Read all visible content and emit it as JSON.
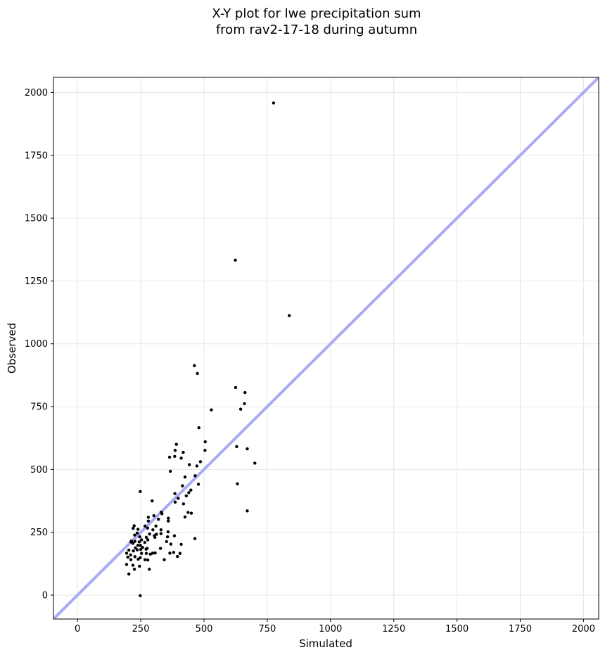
{
  "chart_data": {
    "type": "scatter",
    "title": "X-Y plot for lwe precipitation sum\nfrom rav2-17-18 during autumn",
    "xlabel": "Simulated",
    "ylabel": "Observed",
    "xlim": [
      -95,
      2060
    ],
    "ylim": [
      -95,
      2060
    ],
    "xticks": [
      0,
      250,
      500,
      750,
      1000,
      1250,
      1500,
      1750,
      2000
    ],
    "yticks": [
      0,
      250,
      500,
      750,
      1000,
      1250,
      1500,
      1750,
      2000
    ],
    "grid": true,
    "reference_line": {
      "type": "identity",
      "color": "#aaaaf5"
    },
    "point_color": "#000000",
    "points": [
      [
        775,
        1958
      ],
      [
        624,
        1333
      ],
      [
        837,
        1112
      ],
      [
        462,
        913
      ],
      [
        474,
        882
      ],
      [
        625,
        826
      ],
      [
        662,
        806
      ],
      [
        529,
        737
      ],
      [
        660,
        762
      ],
      [
        645,
        740
      ],
      [
        480,
        666
      ],
      [
        505,
        610
      ],
      [
        391,
        600
      ],
      [
        629,
        591
      ],
      [
        504,
        576
      ],
      [
        671,
        582
      ],
      [
        386,
        576
      ],
      [
        418,
        568
      ],
      [
        384,
        552
      ],
      [
        410,
        545
      ],
      [
        364,
        549
      ],
      [
        486,
        531
      ],
      [
        701,
        525
      ],
      [
        442,
        519
      ],
      [
        472,
        514
      ],
      [
        367,
        493
      ],
      [
        465,
        475
      ],
      [
        425,
        470
      ],
      [
        478,
        441
      ],
      [
        632,
        443
      ],
      [
        415,
        435
      ],
      [
        448,
        418
      ],
      [
        440,
        408
      ],
      [
        385,
        404
      ],
      [
        430,
        395
      ],
      [
        398,
        385
      ],
      [
        248,
        412
      ],
      [
        295,
        375
      ],
      [
        386,
        370
      ],
      [
        419,
        363
      ],
      [
        671,
        335
      ],
      [
        437,
        329
      ],
      [
        450,
        326
      ],
      [
        331,
        330
      ],
      [
        334,
        324
      ],
      [
        425,
        311
      ],
      [
        302,
        316
      ],
      [
        280,
        310
      ],
      [
        320,
        302
      ],
      [
        359,
        306
      ],
      [
        359,
        295
      ],
      [
        280,
        295
      ],
      [
        330,
        260
      ],
      [
        310,
        275
      ],
      [
        298,
        260
      ],
      [
        224,
        276
      ],
      [
        220,
        266
      ],
      [
        239,
        262
      ],
      [
        267,
        275
      ],
      [
        277,
        267
      ],
      [
        358,
        252
      ],
      [
        312,
        242
      ],
      [
        330,
        245
      ],
      [
        383,
        236
      ],
      [
        285,
        243
      ],
      [
        304,
        237
      ],
      [
        246,
        232
      ],
      [
        213,
        215
      ],
      [
        227,
        214
      ],
      [
        253,
        220
      ],
      [
        272,
        230
      ],
      [
        356,
        232
      ],
      [
        266,
        210
      ],
      [
        249,
        198
      ],
      [
        306,
        230
      ],
      [
        352,
        213
      ],
      [
        369,
        203
      ],
      [
        410,
        202
      ],
      [
        464,
        225
      ],
      [
        239,
        198
      ],
      [
        257,
        190
      ],
      [
        219,
        206
      ],
      [
        229,
        188
      ],
      [
        275,
        186
      ],
      [
        250,
        182
      ],
      [
        236,
        180
      ],
      [
        328,
        186
      ],
      [
        271,
        183
      ],
      [
        203,
        179
      ],
      [
        221,
        176
      ],
      [
        194,
        167
      ],
      [
        253,
        166
      ],
      [
        272,
        166
      ],
      [
        288,
        163
      ],
      [
        365,
        167
      ],
      [
        210,
        160
      ],
      [
        227,
        153
      ],
      [
        297,
        167
      ],
      [
        307,
        168
      ],
      [
        380,
        170
      ],
      [
        199,
        151
      ],
      [
        248,
        149
      ],
      [
        211,
        141
      ],
      [
        240,
        143
      ],
      [
        267,
        141
      ],
      [
        278,
        140
      ],
      [
        343,
        141
      ],
      [
        395,
        154
      ],
      [
        405,
        166
      ],
      [
        194,
        122
      ],
      [
        219,
        119
      ],
      [
        245,
        115
      ],
      [
        225,
        103
      ],
      [
        284,
        103
      ],
      [
        203,
        84
      ],
      [
        211,
        212
      ],
      [
        244,
        212
      ],
      [
        278,
        220
      ],
      [
        226,
        239
      ],
      [
        236,
        247
      ],
      [
        248,
        -2
      ]
    ]
  }
}
